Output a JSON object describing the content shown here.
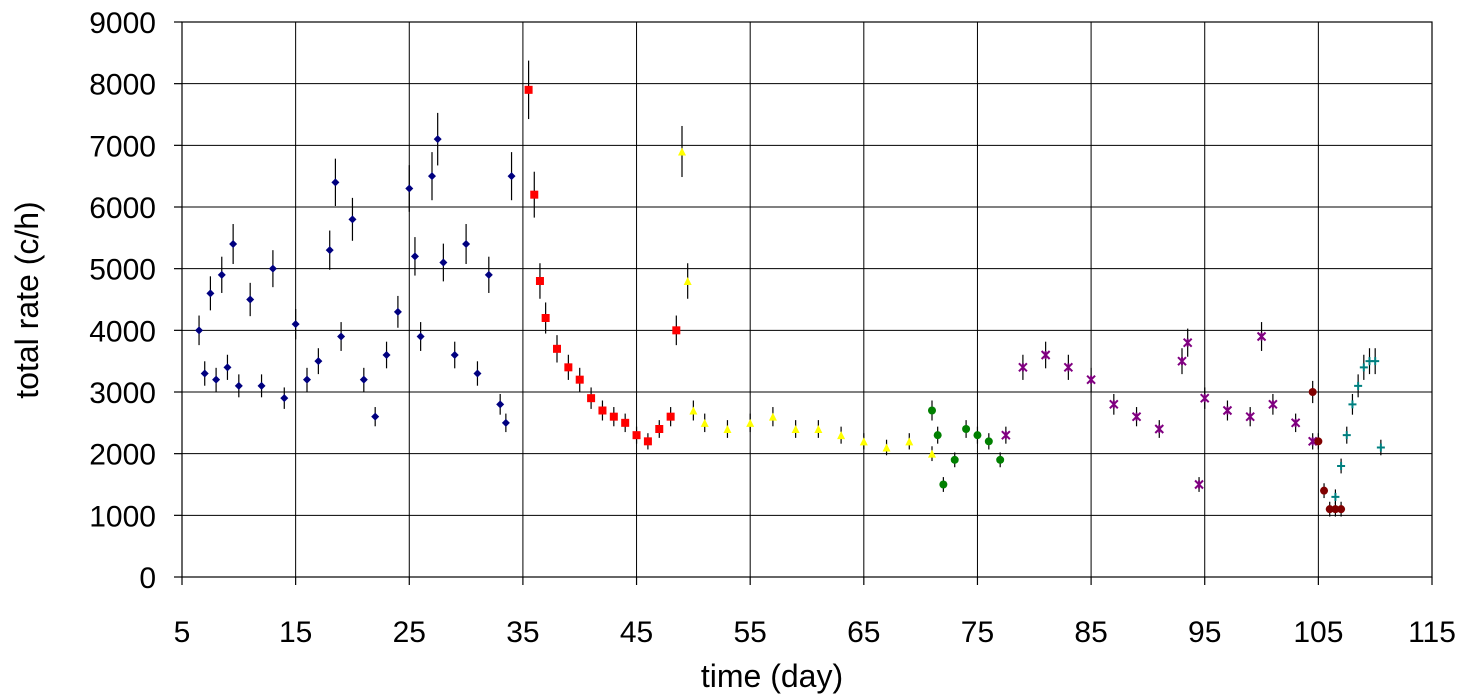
{
  "chart_data": {
    "type": "scatter",
    "title": "",
    "xlabel": "time (day)",
    "ylabel": "total rate (c/h)",
    "xlim": [
      5,
      115
    ],
    "ylim": [
      0,
      9000
    ],
    "xticks": [
      5,
      15,
      25,
      35,
      45,
      55,
      65,
      75,
      85,
      95,
      105,
      115
    ],
    "yticks": [
      0,
      1000,
      2000,
      3000,
      4000,
      5000,
      6000,
      7000,
      8000,
      9000
    ],
    "grid": true,
    "legend": "none",
    "error_bar_color": "#000000",
    "series": [
      {
        "color": "#000080",
        "marker": "diamond",
        "x": [
          6.5,
          7.0,
          7.5,
          8.0,
          8.5,
          9.0,
          9.5,
          10.0,
          11.0,
          12.0,
          13.0,
          14.0,
          15.0,
          16.0,
          17.0,
          18.0,
          18.5,
          19.0,
          20.0,
          21.0,
          22.0,
          23.0,
          24.0,
          25.0,
          25.5,
          26.0,
          27.0,
          27.5,
          28.0,
          29.0,
          30.0,
          31.0,
          32.0,
          33.0,
          33.5,
          34.0
        ],
        "y": [
          4000,
          3300,
          4600,
          3200,
          4900,
          3400,
          5400,
          3100,
          4500,
          3100,
          5000,
          2900,
          4100,
          3200,
          3500,
          5300,
          6400,
          3900,
          5800,
          3200,
          2600,
          3600,
          4300,
          6300,
          5200,
          3900,
          6500,
          7100,
          5100,
          3600,
          5400,
          3300,
          4900,
          2800,
          2500,
          6500
        ]
      },
      {
        "color": "#ff0000",
        "marker": "square",
        "x": [
          35.5,
          36.0,
          36.5,
          37.0,
          38.0,
          39.0,
          40.0,
          41.0,
          42.0,
          43.0,
          44.0,
          45.0,
          46.0,
          47.0,
          48.0,
          48.5
        ],
        "y": [
          7900,
          6200,
          4800,
          4200,
          3700,
          3400,
          3200,
          2900,
          2700,
          2600,
          2500,
          2300,
          2200,
          2400,
          2600,
          4000
        ]
      },
      {
        "color": "#ffff00",
        "marker": "triangle",
        "x": [
          49.0,
          49.5,
          50.0,
          51.0,
          53.0,
          55.0,
          57.0,
          59.0,
          61.0,
          63.0,
          65.0,
          67.0,
          69.0,
          71.0
        ],
        "y": [
          6900,
          4800,
          2700,
          2500,
          2400,
          2500,
          2600,
          2400,
          2400,
          2300,
          2200,
          2100,
          2200,
          2000
        ]
      },
      {
        "color": "#008000",
        "marker": "circle",
        "x": [
          71.0,
          71.5,
          72.0,
          73.0,
          74.0,
          75.0,
          76.0,
          77.0
        ],
        "y": [
          2700,
          2300,
          1500,
          1900,
          2400,
          2300,
          2200,
          1900
        ]
      },
      {
        "color": "#800080",
        "marker": "star",
        "x": [
          77.5,
          79.0,
          81.0,
          83.0,
          85.0,
          87.0,
          89.0,
          91.0,
          93.0,
          93.5,
          94.5,
          95.0,
          97.0,
          99.0,
          100.0,
          101.0,
          103.0,
          104.5
        ],
        "y": [
          2300,
          3400,
          3600,
          3400,
          3200,
          2800,
          2600,
          2400,
          3500,
          3800,
          1500,
          2900,
          2700,
          2600,
          3900,
          2800,
          2500,
          2200
        ]
      },
      {
        "color": "#800000",
        "marker": "circle",
        "x": [
          104.5,
          105.0,
          105.5,
          106.0,
          106.5,
          107.0
        ],
        "y": [
          3000,
          2200,
          1400,
          1100,
          1100,
          1100
        ]
      },
      {
        "color": "#008080",
        "marker": "plus",
        "x": [
          106.5,
          107.0,
          107.5,
          108.0,
          108.5,
          109.0,
          109.5,
          110.0,
          110.5
        ],
        "y": [
          1300,
          1800,
          2300,
          2800,
          3100,
          3400,
          3500,
          3500,
          2100
        ]
      }
    ]
  }
}
